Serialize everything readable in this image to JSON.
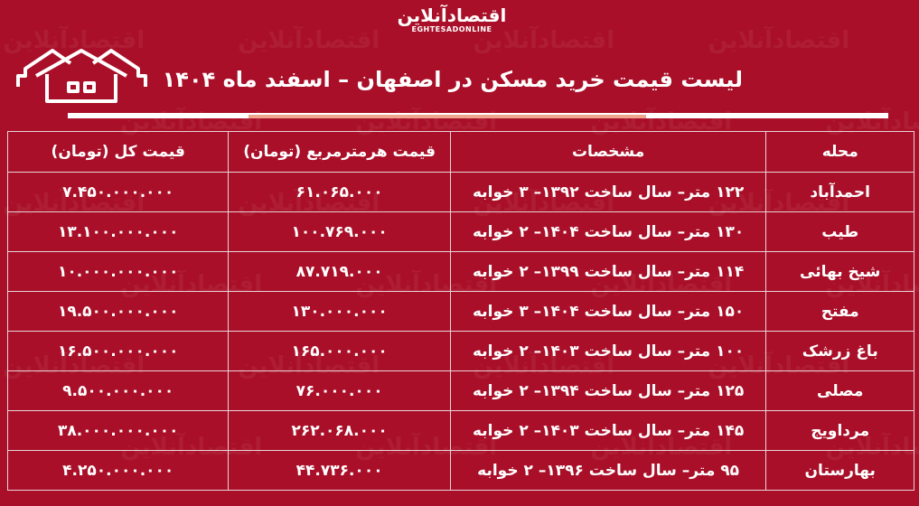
{
  "brand": {
    "name_fa": "اقتصادآنلاین",
    "name_en": "EGHTESADONLINE"
  },
  "title": "لیست قیمت خرید مسکن در اصفهان – اسفند ماه ۱۴۰۴",
  "colors": {
    "background": "#a90f28",
    "accent_bar": "#f0a58e",
    "text": "#ffffff"
  },
  "icons": {
    "header": "houses-icon"
  },
  "table": {
    "headers": [
      "محله",
      "مشخصات",
      "قیمت هرمترمربع (تومان)",
      "قیمت کل (تومان)"
    ],
    "rows": [
      [
        "احمدآباد",
        "۱۲۲ متر– سال ساخت ۱۳۹۲– ۳ خوابه",
        "۶۱.۰۶۵.۰۰۰",
        "۷.۴۵۰.۰۰۰.۰۰۰"
      ],
      [
        "طیب",
        "۱۳۰ متر– سال ساخت ۱۴۰۴– ۲ خوابه",
        "۱۰۰.۷۶۹.۰۰۰",
        "۱۳.۱۰۰.۰۰۰.۰۰۰"
      ],
      [
        "شیخ بهائی",
        "۱۱۴ متر– سال ساخت ۱۳۹۹– ۲ خوابه",
        "۸۷.۷۱۹.۰۰۰",
        "۱۰.۰۰۰.۰۰۰.۰۰۰"
      ],
      [
        "مفتح",
        "۱۵۰ متر– سال ساخت ۱۴۰۴– ۳ خوابه",
        "۱۳۰.۰۰۰.۰۰۰",
        "۱۹.۵۰۰.۰۰۰.۰۰۰"
      ],
      [
        "باغ زرشک",
        "۱۰۰ متر– سال ساخت ۱۴۰۳– ۲ خوابه",
        "۱۶۵.۰۰۰.۰۰۰",
        "۱۶.۵۰۰.۰۰۰.۰۰۰"
      ],
      [
        "مصلی",
        "۱۲۵ متر– سال ساخت ۱۳۹۴– ۲ خوابه",
        "۷۶.۰۰۰.۰۰۰",
        "۹.۵۰۰.۰۰۰.۰۰۰"
      ],
      [
        "مرداویج",
        "۱۴۵ متر– سال ساخت ۱۴۰۳– ۲ خوابه",
        "۲۶۲.۰۶۸.۰۰۰",
        "۳۸.۰۰۰.۰۰۰.۰۰۰"
      ],
      [
        "بهارستان",
        "۹۵ متر– سال ساخت ۱۳۹۶– ۲ خوابه",
        "۴۴.۷۳۶.۰۰۰",
        "۴.۲۵۰.۰۰۰.۰۰۰"
      ]
    ]
  }
}
